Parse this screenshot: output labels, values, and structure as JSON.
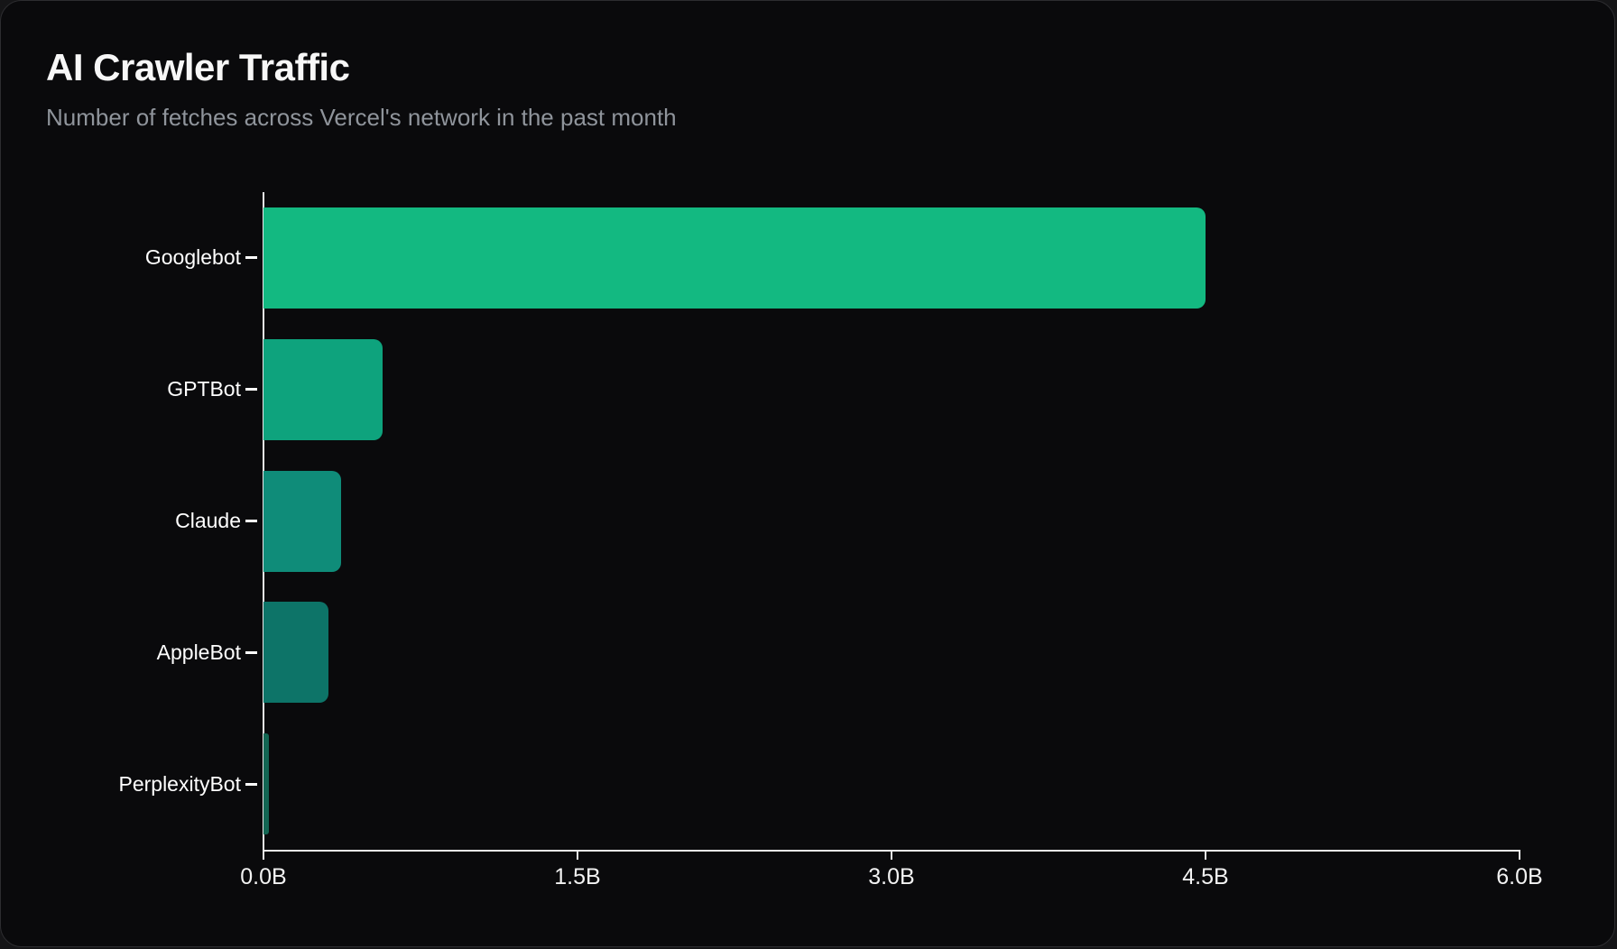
{
  "header": {
    "title": "AI Crawler Traffic",
    "subtitle": "Number of fetches across Vercel's network in the past month"
  },
  "chart_data": {
    "type": "bar",
    "orientation": "horizontal",
    "title": "AI Crawler Traffic",
    "subtitle": "Number of fetches across Vercel's network in the past month",
    "categories": [
      "Googlebot",
      "GPTBot",
      "Claude",
      "AppleBot",
      "PerplexityBot"
    ],
    "values": [
      4.5,
      0.57,
      0.37,
      0.31,
      0.025
    ],
    "unit": "B",
    "value_description": "fetches in billions",
    "xlim": [
      0,
      6
    ],
    "x_ticks": [
      {
        "value": 0.0,
        "label": "0.0B"
      },
      {
        "value": 1.5,
        "label": "1.5B"
      },
      {
        "value": 3.0,
        "label": "3.0B"
      },
      {
        "value": 4.5,
        "label": "4.5B"
      },
      {
        "value": 6.0,
        "label": "6.0B"
      }
    ],
    "bar_colors": [
      "#13b981",
      "#0ea37d",
      "#0f8c79",
      "#0d7468",
      "#136653"
    ],
    "axis_color": "#eaeaea",
    "category_label_color": "#ffffff",
    "tick_label_color": "#f2f2f2",
    "background": "#0a0a0c",
    "grid": false,
    "legend": false
  }
}
